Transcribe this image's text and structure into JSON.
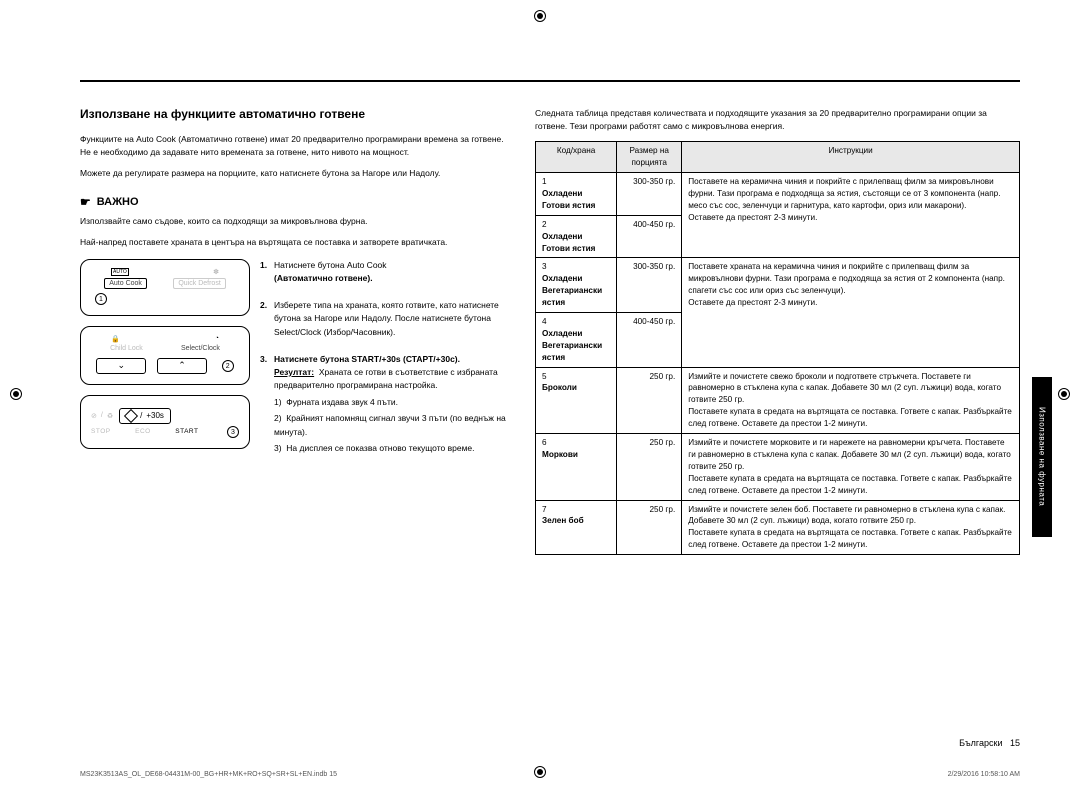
{
  "section_title": "Използване на функциите автоматично готвене",
  "intro_p1": "Функциите на Auto Cook (Автоматично готвене) имат 20 предварително програмирани времена за готвене. Не е необходимо да задавате нито времената за готвене, нито нивото на мощност.",
  "intro_p2": "Можете да регулирате размера на порциите, като натиснете бутона за Нагоре или Надолу.",
  "important_label": "ВАЖНО",
  "important_p1": "Използвайте само съдове, които са подходящи за микровълнова фурна.",
  "important_p2": "Най-напред поставете храната в центъра на въртящата се поставка и затворете вратичката.",
  "panel1": {
    "btn_left": "Auto Cook",
    "btn_right": "Quick Defrost",
    "top_left": "AUTO"
  },
  "panel2": {
    "left": "Child Lock",
    "right": "Select/Clock"
  },
  "panel3": {
    "stop": "STOP",
    "eco": "ECO",
    "start": "START",
    "plus": "+30s"
  },
  "steps": {
    "s1_num": "1.",
    "s1_lead": "Натиснете бутона Auto Cook",
    "s1_sub": "(Автоматично готвене).",
    "s2_num": "2.",
    "s2_lead": "Изберете типа на храната, която готвите, като натиснете бутона за Нагоре или Надолу. После натиснете бутона Select/Clock (Избор/Часовник).",
    "s3_num": "3.",
    "s3_lead": "Натиснете бутона START/+30s (СТАРТ/+30с).",
    "s3_res_label": "Резултат:",
    "s3_res_text": "Храната се готви в съответствие с избраната предварително програмирана настройка.",
    "s3_1": "1)  Фурната издава звук 4 пъти.",
    "s3_2": "2)  Крайният напомнящ сигнал звучи 3 пъти (по веднъж на минута).",
    "s3_3": "3)  На дисплея се показва отново текущото време."
  },
  "right_intro": "Следната таблица представя количествата и подходящите указания за 20 предварително програмирани опции за готвене. Тези програми работят само с микровълнова енергия.",
  "table": {
    "h1": "Код/храна",
    "h2": "Размер на порцията",
    "h3": "Инструкции",
    "rows": [
      {
        "c": "1\nОхладени\nГотови ястия",
        "s": "300-350 гр.",
        "i": "Поставете на керамична чиния и покрийте с прилепващ филм за микровълнови фурни. Тази програма е подходяща за ястия, състоящи се от 3 компонента (напр. месо със сос, зеленчуци и гарнитура, като картофи, ориз или макарони).\nОставете да престоят 2-3 минути."
      },
      {
        "c": "2\nОхладени\nГотови ястия",
        "s": "400-450 гр.",
        "i": ""
      },
      {
        "c": "3\nОхладени\nВегетариански ястия",
        "s": "300-350 гр.",
        "i": "Поставете храната на керамична чиния и покрийте с прилепващ филм за микровълнови фурни. Тази програма е подходяща за ястия от 2 компонента (напр. спагети със сос или ориз със зеленчуци).\nОставете да престоят 2-3 минути."
      },
      {
        "c": "4\nОхладени\nВегетариански ястия",
        "s": "400-450 гр.",
        "i": ""
      },
      {
        "c": "5\nБроколи",
        "s": "250 гр.",
        "i": "Измийте и почистете свежо броколи и подгответе стръкчета. Поставете ги равномерно в стъклена купа с капак. Добавете 30 мл (2 суп. лъжици) вода, когато готвите 250 гр.\nПоставете купата в средата на въртящата се поставка. Гответе с капак. Разбъркайте след готвене. Оставете да престои 1-2 минути."
      },
      {
        "c": "6\nМоркови",
        "s": "250 гр.",
        "i": "Измийте и почистете морковите и ги нарежете на равномерни кръгчета. Поставете ги равномерно в стъклена купа с капак. Добавете 30 мл (2 суп. лъжици) вода, когато готвите 250 гр.\nПоставете купата в средата на въртящата се поставка. Гответе с капак. Разбъркайте след готвене. Оставете да престои 1-2 минути."
      },
      {
        "c": "7\nЗелен боб",
        "s": "250 гр.",
        "i": "Измийте и почистете зелен боб. Поставете ги равномерно в стъклена купа с капак. Добавете 30 мл (2 суп. лъжици) вода, когато готвите 250 гр.\nПоставете купата в средата на въртящата се поставка. Гответе с капак. Разбъркайте след готвене. Оставете да престои 1-2 минути."
      }
    ]
  },
  "side_tab": "Използване на фурната",
  "page_footer_lang": "Български",
  "page_footer_num": "15",
  "imprint_left": "MS23K3513AS_OL_DE68-04431M-00_BG+HR+MK+RO+SQ+SR+SL+EN.indb   15",
  "imprint_right": "2/29/2016   10:58:10 AM"
}
